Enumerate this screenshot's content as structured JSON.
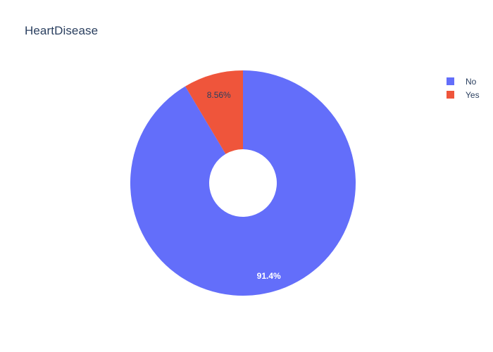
{
  "chart_data": {
    "type": "pie",
    "title": "HeartDisease",
    "hole": true,
    "labels": [
      "No",
      "Yes"
    ],
    "values": [
      91.44,
      8.56
    ],
    "percent_labels": [
      "91.4%",
      "8.56%"
    ],
    "colors": [
      "#636efa",
      "#ef553b"
    ],
    "label_colors": [
      "#ffffff",
      "#2a3f5f"
    ],
    "legend": "top-right"
  },
  "legend": {
    "items": [
      {
        "label": "No",
        "color": "#636efa"
      },
      {
        "label": "Yes",
        "color": "#ef553b"
      }
    ]
  }
}
